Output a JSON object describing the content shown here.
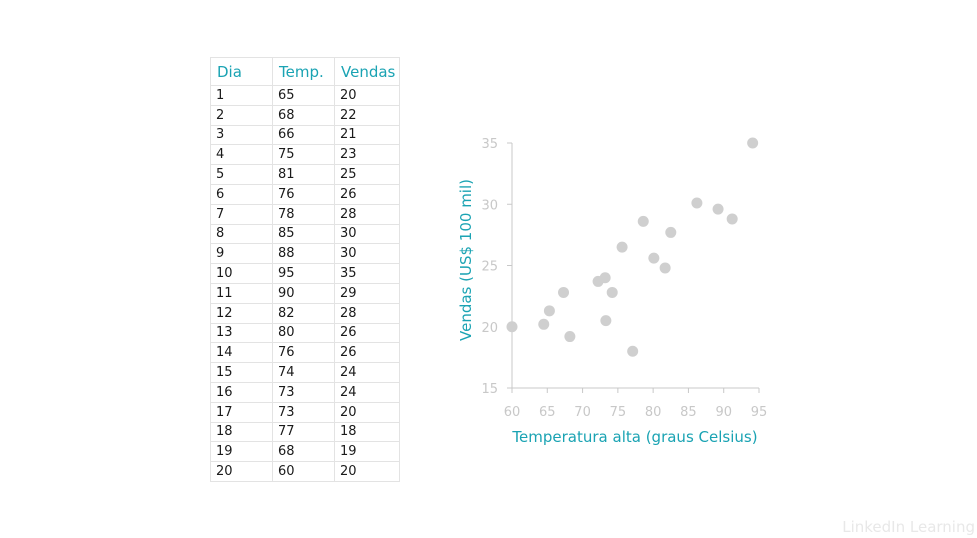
{
  "table": {
    "headers": [
      "Dia",
      "Temp.",
      "Vendas"
    ],
    "rows": [
      [
        "1",
        "65",
        "20"
      ],
      [
        "2",
        "68",
        "22"
      ],
      [
        "3",
        "66",
        "21"
      ],
      [
        "4",
        "75",
        "23"
      ],
      [
        "5",
        "81",
        "25"
      ],
      [
        "6",
        "76",
        "26"
      ],
      [
        "7",
        "78",
        "28"
      ],
      [
        "8",
        "85",
        "30"
      ],
      [
        "9",
        "88",
        "30"
      ],
      [
        "10",
        "95",
        "35"
      ],
      [
        "11",
        "90",
        "29"
      ],
      [
        "12",
        "82",
        "28"
      ],
      [
        "13",
        "80",
        "26"
      ],
      [
        "14",
        "76",
        "26"
      ],
      [
        "15",
        "74",
        "24"
      ],
      [
        "16",
        "73",
        "24"
      ],
      [
        "17",
        "73",
        "20"
      ],
      [
        "18",
        "77",
        "18"
      ],
      [
        "19",
        "68",
        "19"
      ],
      [
        "20",
        "60",
        "20"
      ]
    ]
  },
  "chart_data": {
    "type": "scatter",
    "xlabel": "Temperatura alta (graus Celsius)",
    "ylabel": "Vendas (US$ 100 mil)",
    "xlim": [
      60,
      95
    ],
    "ylim": [
      15,
      35
    ],
    "xticks": [
      60,
      65,
      70,
      75,
      80,
      85,
      90,
      95
    ],
    "yticks": [
      15,
      20,
      25,
      30,
      35
    ],
    "grid": false,
    "color": "#cfcfcf",
    "accent": "#1aa3b3",
    "points": [
      {
        "x": 60,
        "y": 20
      },
      {
        "x": 64.5,
        "y": 20.2
      },
      {
        "x": 65.3,
        "y": 21.3
      },
      {
        "x": 67.3,
        "y": 22.8
      },
      {
        "x": 68.2,
        "y": 19.2
      },
      {
        "x": 72.2,
        "y": 23.7
      },
      {
        "x": 73.2,
        "y": 24
      },
      {
        "x": 73.3,
        "y": 20.5
      },
      {
        "x": 74.2,
        "y": 22.8
      },
      {
        "x": 75.6,
        "y": 26.5
      },
      {
        "x": 77.1,
        "y": 18
      },
      {
        "x": 78.6,
        "y": 28.6
      },
      {
        "x": 80.1,
        "y": 25.6
      },
      {
        "x": 81.7,
        "y": 24.8
      },
      {
        "x": 82.5,
        "y": 27.7
      },
      {
        "x": 86.2,
        "y": 30.1
      },
      {
        "x": 89.2,
        "y": 29.6
      },
      {
        "x": 91.2,
        "y": 28.8
      },
      {
        "x": 94.1,
        "y": 35
      }
    ]
  },
  "watermark": "LinkedIn Learning"
}
